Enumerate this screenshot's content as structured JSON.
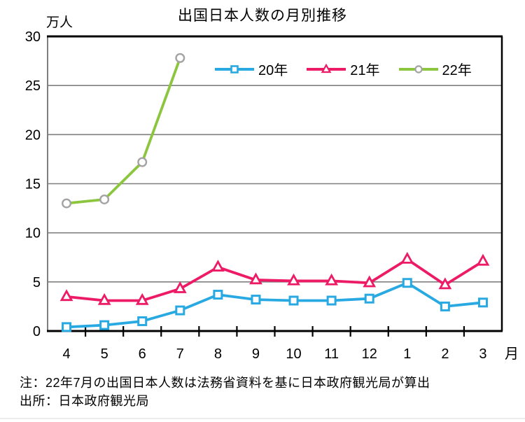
{
  "page": {
    "title": "出国日本人数の月別推移",
    "y_axis_unit": "万人",
    "x_axis_suffix": "月",
    "note_line1": "注：22年7月の出国日本人数は法務省資料を基に日本政府観光局が算出",
    "note_line2": "出所：日本政府観光局"
  },
  "colors": {
    "series_20": "#29a9e1",
    "series_21": "#ed1a66",
    "series_22": "#8cc63f",
    "marker_22_stroke": "#a3a3a3",
    "gridline": "#7f7f7f",
    "axis": "#000000",
    "text": "#000000"
  },
  "chart_data": {
    "type": "line",
    "title": "出国日本人数の月別推移",
    "ylabel": "万人",
    "xlabel": "月",
    "ylim": [
      0,
      30
    ],
    "yticks": [
      0,
      5,
      10,
      15,
      20,
      25,
      30
    ],
    "grid": "horizontal",
    "legend_position": "top-inside",
    "categories": [
      "4",
      "5",
      "6",
      "7",
      "8",
      "9",
      "10",
      "11",
      "12",
      "1",
      "2",
      "3"
    ],
    "series": [
      {
        "name": "20年",
        "color": "#29a9e1",
        "marker": "square",
        "values": [
          0.4,
          0.6,
          1.0,
          2.1,
          3.7,
          3.2,
          3.1,
          3.1,
          3.3,
          4.9,
          2.5,
          2.9
        ]
      },
      {
        "name": "21年",
        "color": "#ed1a66",
        "marker": "triangle",
        "values": [
          3.5,
          3.1,
          3.1,
          4.3,
          6.5,
          5.2,
          5.1,
          5.1,
          4.9,
          7.3,
          4.7,
          7.1
        ]
      },
      {
        "name": "22年",
        "color": "#8cc63f",
        "marker": "circle",
        "marker_stroke": "#a3a3a3",
        "values": [
          13.0,
          13.4,
          17.2,
          27.8,
          null,
          null,
          null,
          null,
          null,
          null,
          null,
          null
        ]
      }
    ]
  }
}
